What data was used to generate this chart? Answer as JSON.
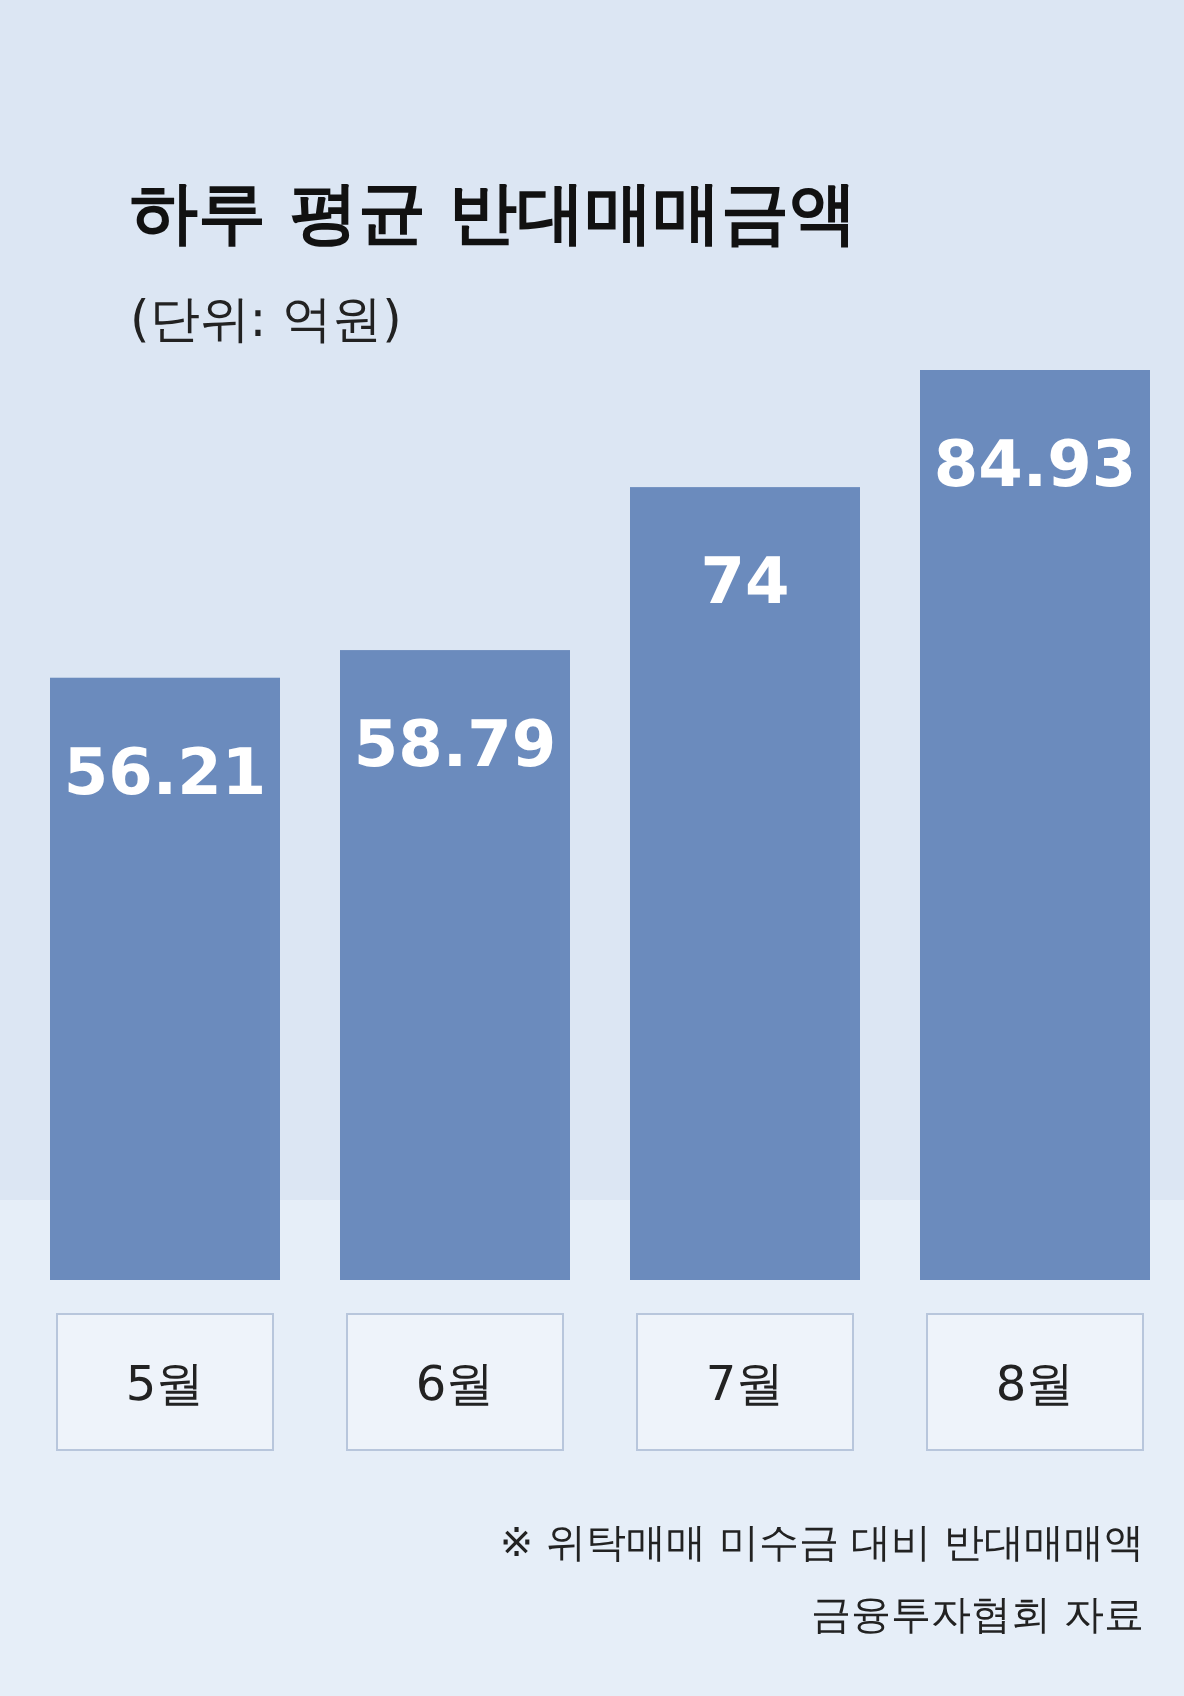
{
  "chart_data": {
    "type": "bar",
    "title": "하루 평균 반대매매금액",
    "subtitle": "(단위: 억원)",
    "categories": [
      "5월",
      "6월",
      "7월",
      "8월"
    ],
    "values": [
      56.21,
      58.79,
      74,
      84.93
    ],
    "color": "#6b8bbd",
    "data_labels": true,
    "annotations": [
      "※ 위탁매매 미수금 대비 반대매매액",
      "금융투자협회 자료"
    ]
  }
}
